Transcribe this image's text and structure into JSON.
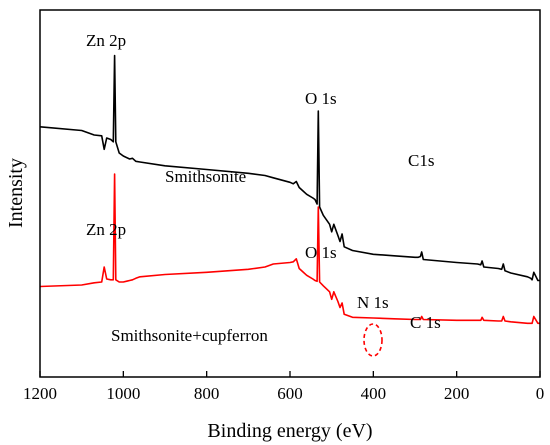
{
  "chart_data": {
    "type": "line",
    "xlabel": "Binding energy (eV)",
    "ylabel": "Intensity",
    "xlim": [
      1200,
      0
    ],
    "x_reversed": true,
    "xticks": [
      1200,
      1000,
      800,
      600,
      400,
      200,
      0
    ],
    "y_ticks_shown": false,
    "grid": false,
    "legend": "none",
    "series": [
      {
        "color": "#000000",
        "x": [
          1200,
          1100,
          1070,
          1052,
          1046,
          1040,
          1030,
          1024,
          1021,
          1018,
          1010,
          1000,
          985,
          978,
          970,
          960,
          900,
          800,
          700,
          660,
          640,
          600,
          592,
          585,
          578,
          570,
          560,
          545,
          540,
          535,
          532,
          529,
          520,
          505,
          500,
          495,
          485,
          480,
          475,
          470,
          450,
          400,
          350,
          300,
          292,
          287,
          284,
          280,
          200,
          150,
          142,
          139,
          135,
          100,
          92,
          88,
          84,
          70,
          30,
          22,
          19,
          15,
          5,
          0
        ],
        "y": [
          215,
          210,
          204,
          203,
          185,
          200,
          198,
          195,
          310,
          195,
          180,
          176,
          172,
          173,
          169,
          168,
          163,
          158,
          153,
          150,
          147,
          141,
          139,
          142,
          134,
          130,
          125,
          120,
          118,
          112,
          236,
          108,
          97,
          85,
          75,
          85,
          70,
          62,
          72,
          55,
          50,
          45,
          43,
          41,
          41,
          42,
          48,
          38,
          34,
          32,
          31,
          36,
          28,
          26,
          25,
          32,
          23,
          20,
          15,
          13,
          11,
          21,
          10,
          10
        ]
      },
      {
        "color": "#ff0000",
        "x": [
          1200,
          1100,
          1070,
          1052,
          1046,
          1040,
          1030,
          1024,
          1021,
          1018,
          1010,
          1000,
          985,
          978,
          970,
          960,
          900,
          800,
          700,
          660,
          640,
          600,
          592,
          585,
          578,
          570,
          560,
          545,
          540,
          535,
          532,
          529,
          520,
          505,
          500,
          495,
          485,
          480,
          475,
          470,
          450,
          400,
          350,
          300,
          292,
          287,
          284,
          280,
          200,
          150,
          142,
          139,
          135,
          100,
          92,
          88,
          84,
          70,
          30,
          22,
          19,
          15,
          5,
          0
        ],
        "y": [
          2,
          4,
          7,
          8,
          28,
          12,
          11,
          11,
          152,
          11,
          8,
          8,
          10,
          11,
          13,
          15,
          18,
          21,
          25,
          28,
          32,
          34,
          35,
          39,
          26,
          22,
          17,
          12,
          10,
          9,
          108,
          8,
          3,
          -5,
          -15,
          -5,
          -18,
          -26,
          -20,
          -35,
          -39,
          -40,
          -41,
          -42,
          -42,
          -42,
          -38,
          -42,
          -43,
          -43,
          -43,
          -39,
          -43,
          -44,
          -44,
          -38,
          -44,
          -45,
          -47,
          -47,
          -47,
          -38,
          -47,
          -47
        ]
      }
    ],
    "annotations": [
      {
        "text": "Zn 2p",
        "color": "#000000"
      },
      {
        "text": "O 1s",
        "color": "#000000"
      },
      {
        "text": "Smithsonite",
        "color": "#000000"
      },
      {
        "text": "C1s",
        "color": "#000000"
      },
      {
        "text": "Zn 2p",
        "color": "#000000"
      },
      {
        "text": "O 1s",
        "color": "#000000"
      },
      {
        "text": "N 1s",
        "color": "#000000"
      },
      {
        "text": "C 1s",
        "color": "#000000"
      },
      {
        "text": "Smithsonite+cupferron",
        "color": "#000000"
      }
    ]
  }
}
